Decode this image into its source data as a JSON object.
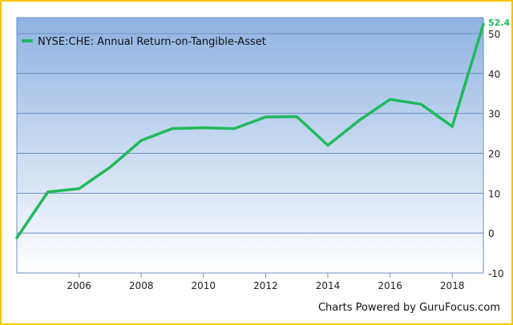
{
  "chart_data": {
    "type": "line",
    "title": "",
    "xlabel": "",
    "ylabel": "",
    "x": [
      2004,
      2005,
      2006,
      2007,
      2008,
      2009,
      2010,
      2011,
      2012,
      2013,
      2014,
      2015,
      2016,
      2017,
      2018,
      2019
    ],
    "series": [
      {
        "name": "NYSE:CHE: Annual Return-on-Tangible-Asset",
        "values": [
          -1.2,
          10.3,
          11.1,
          16.5,
          23.2,
          26.2,
          26.4,
          26.2,
          29.1,
          29.2,
          22.0,
          28.2,
          33.5,
          32.3,
          26.7,
          52.4
        ],
        "color": "#1fba5b"
      }
    ],
    "xlim": [
      2004,
      2019
    ],
    "ylim": [
      -10,
      54
    ],
    "xticks": [
      2006,
      2008,
      2010,
      2012,
      2014,
      2016,
      2018
    ],
    "yticks": [
      -10,
      0,
      10,
      20,
      30,
      40,
      50
    ],
    "last_value_label": "52.4",
    "legend_position": "top-left",
    "grid": "horizontal",
    "background_gradient": [
      "#8fb3e2",
      "#ffffff"
    ],
    "credit": "Charts Powered by GuruFocus.com"
  }
}
